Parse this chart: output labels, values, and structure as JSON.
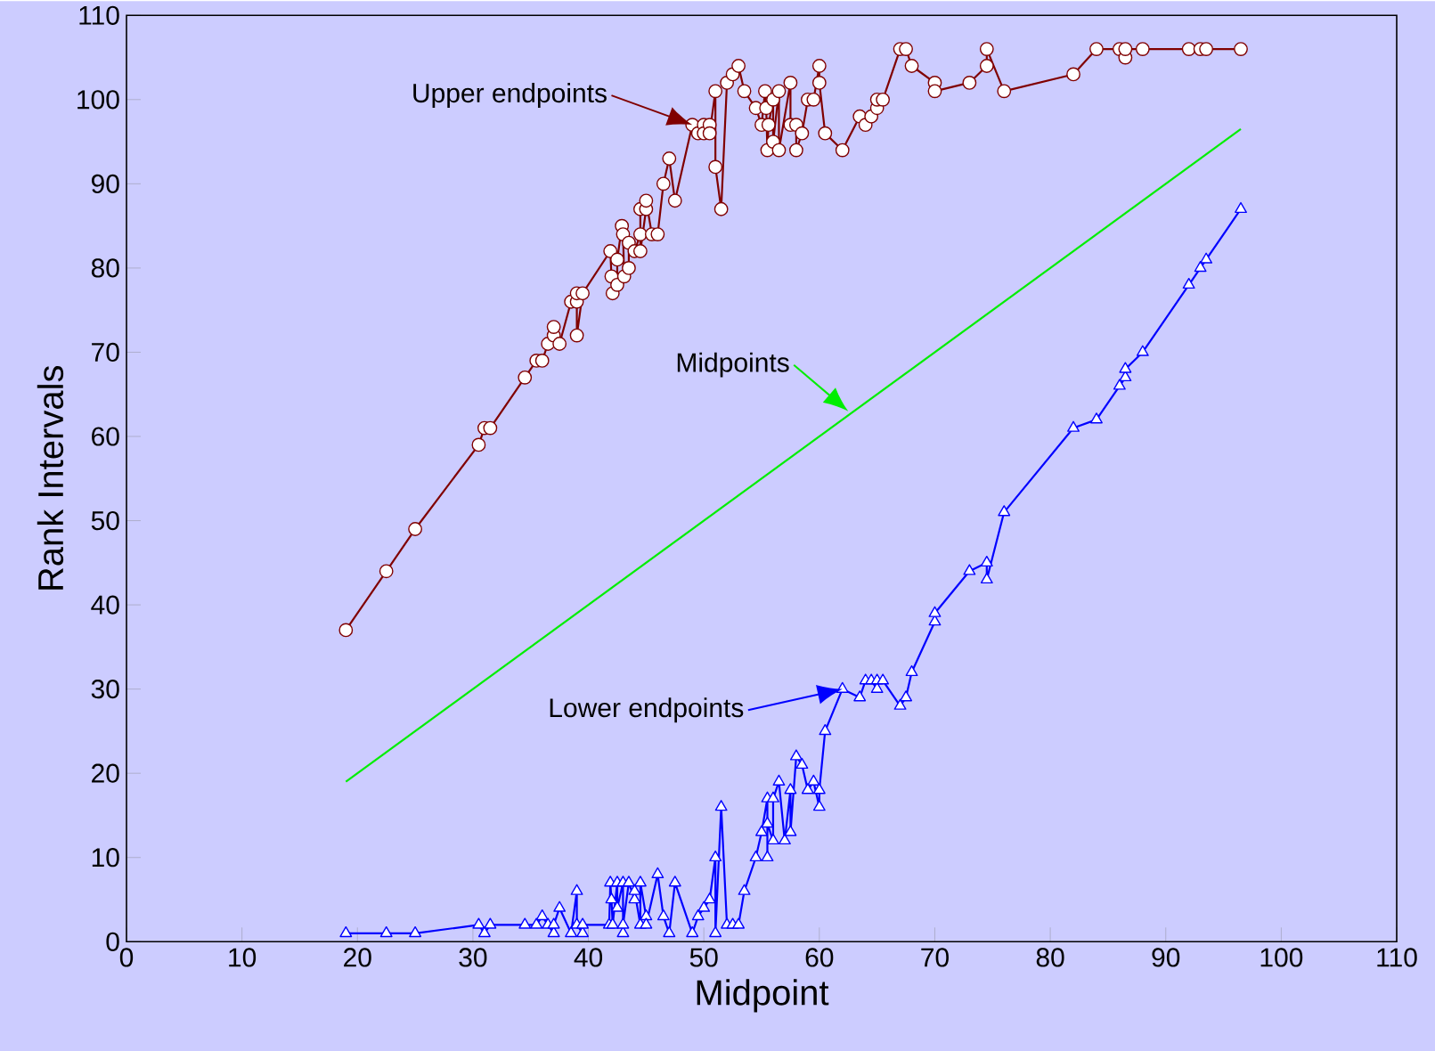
{
  "chart_data": {
    "type": "line",
    "xlabel": "Midpoint",
    "ylabel": "Rank Intervals",
    "xlim": [
      0,
      110
    ],
    "ylim": [
      0,
      110
    ],
    "xticks": [
      0,
      10,
      20,
      30,
      40,
      50,
      60,
      70,
      80,
      90,
      100,
      110
    ],
    "yticks": [
      0,
      10,
      20,
      30,
      40,
      50,
      60,
      70,
      80,
      90,
      100,
      110
    ],
    "series": [
      {
        "color": "#800000",
        "marker": "circle",
        "x": [
          19,
          22.5,
          25,
          30.5,
          31,
          31.5,
          34.5,
          35.5,
          36,
          36.5,
          37,
          37,
          37.5,
          38.5,
          39,
          39,
          39,
          39.5,
          41.9,
          42,
          42.1,
          42.5,
          42.5,
          42.9,
          43,
          43.1,
          43.5,
          43.5,
          44,
          44.5,
          44.5,
          44.5,
          45,
          45,
          45.5,
          46,
          46.5,
          47,
          47.5,
          49,
          49.5,
          50,
          50,
          50.5,
          50.5,
          51,
          51,
          51.5,
          52,
          52.5,
          53,
          53.5,
          54.5,
          55,
          55.3,
          55.4,
          55.5,
          55.6,
          56,
          56,
          56.5,
          56.5,
          57.5,
          57.5,
          58,
          58,
          58.5,
          59,
          59.5,
          60,
          60,
          60.5,
          62,
          63.5,
          64,
          64.5,
          65,
          65,
          65.5,
          67,
          67.5,
          68,
          70,
          70,
          73,
          74.5,
          74.5,
          76,
          82,
          84,
          86,
          86.5,
          86.5,
          88,
          92,
          93,
          93.5,
          96.5
        ],
        "values": [
          37,
          44,
          49,
          59,
          61,
          61,
          67,
          69,
          69,
          71,
          72,
          73,
          71,
          76,
          76,
          77,
          72,
          77,
          82,
          79,
          77,
          78,
          81,
          85,
          84,
          79,
          80,
          83,
          82,
          84,
          87,
          82,
          87,
          88,
          84,
          84,
          90,
          93,
          88,
          97,
          96,
          97,
          96,
          97,
          96,
          101,
          92,
          87,
          102,
          103,
          104,
          101,
          99,
          97,
          101,
          99,
          94,
          97,
          100,
          95,
          101,
          94,
          102,
          97,
          97,
          94,
          96,
          100,
          100,
          104,
          102,
          96,
          94,
          98,
          97,
          98,
          99,
          100,
          100,
          106,
          106,
          104,
          102,
          101,
          102,
          104,
          106,
          101,
          103,
          106,
          106,
          105,
          106,
          106,
          106,
          106,
          106,
          106
        ]
      },
      {
        "color": "#00ee00",
        "marker": "none",
        "x": [
          19,
          96.5
        ],
        "values": [
          19,
          96.5
        ]
      },
      {
        "color": "#0000ff",
        "marker": "triangle",
        "x": [
          19,
          22.5,
          25,
          30.5,
          31,
          31.5,
          34.5,
          35.5,
          36,
          36.5,
          37,
          37,
          37.5,
          38.5,
          39,
          39,
          39.5,
          39.5,
          41.8,
          41.9,
          42,
          42.1,
          42.5,
          42.5,
          43,
          43,
          43,
          43.5,
          44,
          44,
          44.5,
          44.5,
          45,
          45,
          46,
          46.5,
          47,
          47.5,
          49,
          49.5,
          50,
          50.5,
          51,
          51,
          51.5,
          52,
          52.5,
          53,
          53.5,
          54.5,
          55,
          55.5,
          55.5,
          55.5,
          56,
          56,
          56.5,
          57,
          57.5,
          57.5,
          58,
          58.5,
          59,
          59.5,
          60,
          60,
          60.5,
          62,
          63.5,
          64,
          64.5,
          65,
          65,
          65.5,
          67,
          67.5,
          68,
          70,
          70,
          73,
          74.5,
          74.5,
          76,
          82,
          84,
          86,
          86.5,
          86.5,
          88,
          92,
          93,
          93.5,
          96.5
        ],
        "values": [
          1,
          1,
          1,
          2,
          1,
          2,
          2,
          2,
          3,
          2,
          1,
          2,
          4,
          1,
          6,
          2,
          1,
          2,
          2,
          7,
          5,
          2,
          7,
          4,
          7,
          1,
          2,
          7,
          5,
          6,
          2,
          7,
          3,
          2,
          8,
          3,
          1,
          7,
          1,
          3,
          4,
          5,
          10,
          1,
          16,
          2,
          2,
          2,
          6,
          10,
          13,
          17,
          10,
          14,
          12,
          17,
          19,
          12,
          18,
          13,
          22,
          21,
          18,
          19,
          16,
          18,
          25,
          30,
          29,
          31,
          31,
          30,
          31,
          31,
          28,
          29,
          32,
          38,
          39,
          44,
          45,
          43,
          51,
          61,
          62,
          66,
          67,
          68,
          70,
          78,
          80,
          81,
          87
        ]
      }
    ],
    "annotations": [
      "Upper endpoints",
      {
        "text": "Midpoints",
        "x": 62.5,
        "y": 63
      },
      "Lower endpoints"
    ]
  }
}
